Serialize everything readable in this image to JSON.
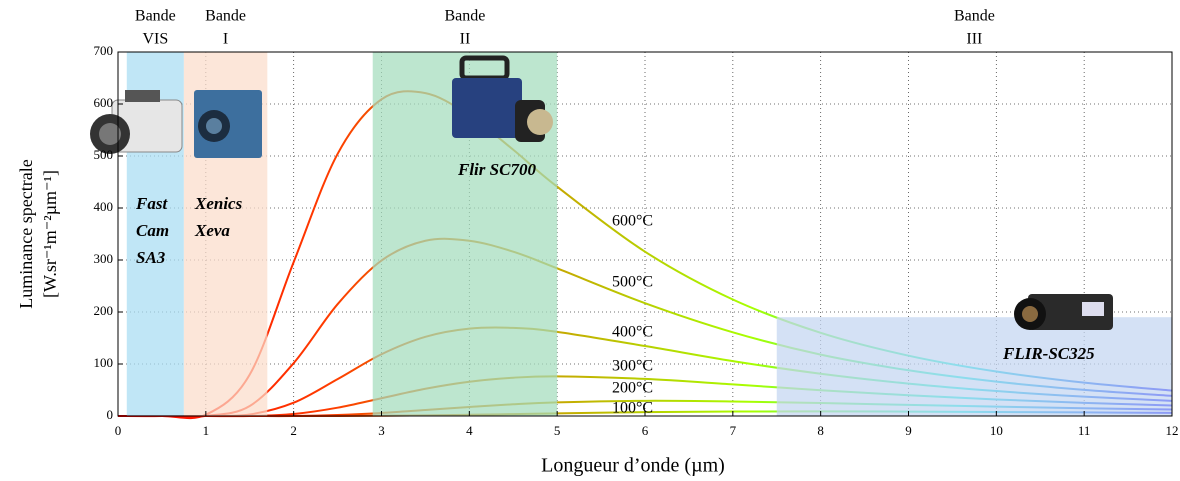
{
  "chart_data": {
    "type": "line",
    "x_label": "Longueur d’onde (µm)",
    "y_label": [
      "Luminance spectrale",
      "[W.sr⁻¹m⁻²µm⁻¹]"
    ],
    "xlim": [
      0,
      12
    ],
    "ylim": [
      0,
      700
    ],
    "xticks": [
      0,
      1,
      2,
      3,
      4,
      5,
      6,
      7,
      8,
      9,
      10,
      11,
      12
    ],
    "yticks": [
      0,
      100,
      200,
      300,
      400,
      500,
      600,
      700
    ],
    "grid": true,
    "colormap": [
      "#ff0000",
      "#ff3c00",
      "#c8a000",
      "#a8ff00",
      "#00f0e0",
      "#0000ff"
    ],
    "x": [
      0,
      0.5,
      1,
      1.5,
      2,
      2.5,
      3,
      3.5,
      4,
      4.5,
      5,
      6,
      7,
      8,
      9,
      10,
      11,
      12
    ],
    "series": [
      {
        "name": "600°C",
        "values": [
          0,
          0,
          2.5,
          79.7,
          296,
          504,
          609,
          621,
          578,
          512,
          441,
          316,
          224,
          160,
          116,
          85.5,
          64.1,
          48.9
        ]
      },
      {
        "name": "500°C",
        "values": [
          0,
          0,
          0.3,
          19.3,
          101.7,
          215,
          299,
          337,
          337,
          316,
          284,
          217,
          161,
          118,
          87.9,
          66.1,
          50.3,
          38.8
        ]
      },
      {
        "name": "400°C",
        "values": [
          0,
          0,
          0,
          3,
          25.5,
          70.9,
          118.8,
          152.3,
          168,
          169.5,
          161.8,
          134.6,
          105.6,
          81.3,
          62.3,
          48,
          37.2,
          29.2
        ]
      },
      {
        "name": "300°C",
        "values": [
          0,
          0,
          0,
          0,
          3.9,
          16,
          34.2,
          52.4,
          65.9,
          73.6,
          76.2,
          71.3,
          60.8,
          49.6,
          39.8,
          31.7,
          25.3,
          20.3
        ]
      },
      {
        "name": "200°C",
        "values": [
          0,
          0,
          0,
          0,
          0,
          1.9,
          5.8,
          11.5,
          17.4,
          22.6,
          26.2,
          29.2,
          28,
          25,
          21.4,
          18,
          15,
          12.4
        ]
      },
      {
        "name": "100°C",
        "values": [
          0,
          0,
          0,
          0,
          0,
          0,
          0.4,
          1.1,
          2.3,
          3.7,
          5.1,
          7.5,
          8.7,
          8.9,
          8.5,
          7.7,
          6.9,
          6
        ]
      }
    ],
    "bands": [
      {
        "label": [
          "Bande",
          "VIS"
        ],
        "range": [
          0.1,
          0.75
        ],
        "top": 700,
        "color": "#a8dcf3"
      },
      {
        "label": [
          "Bande",
          "I"
        ],
        "range": [
          0.75,
          1.7
        ],
        "top": 700,
        "color": "#fbdcca"
      },
      {
        "label": [
          "Bande",
          "II"
        ],
        "range": [
          2.9,
          5.0
        ],
        "top": 700,
        "color": "#a4dcbc"
      },
      {
        "label": [
          "Bande",
          "III"
        ],
        "range": [
          7.5,
          12
        ],
        "top": 190,
        "color": "#c4d6f1"
      }
    ],
    "cameras": [
      {
        "label": [
          "Fast",
          "Cam",
          "SA3"
        ]
      },
      {
        "label": [
          "Xenics",
          "Xeva"
        ]
      },
      {
        "label": [
          "Flir SC700"
        ]
      },
      {
        "label": [
          "FLIR-SC325"
        ]
      }
    ]
  }
}
